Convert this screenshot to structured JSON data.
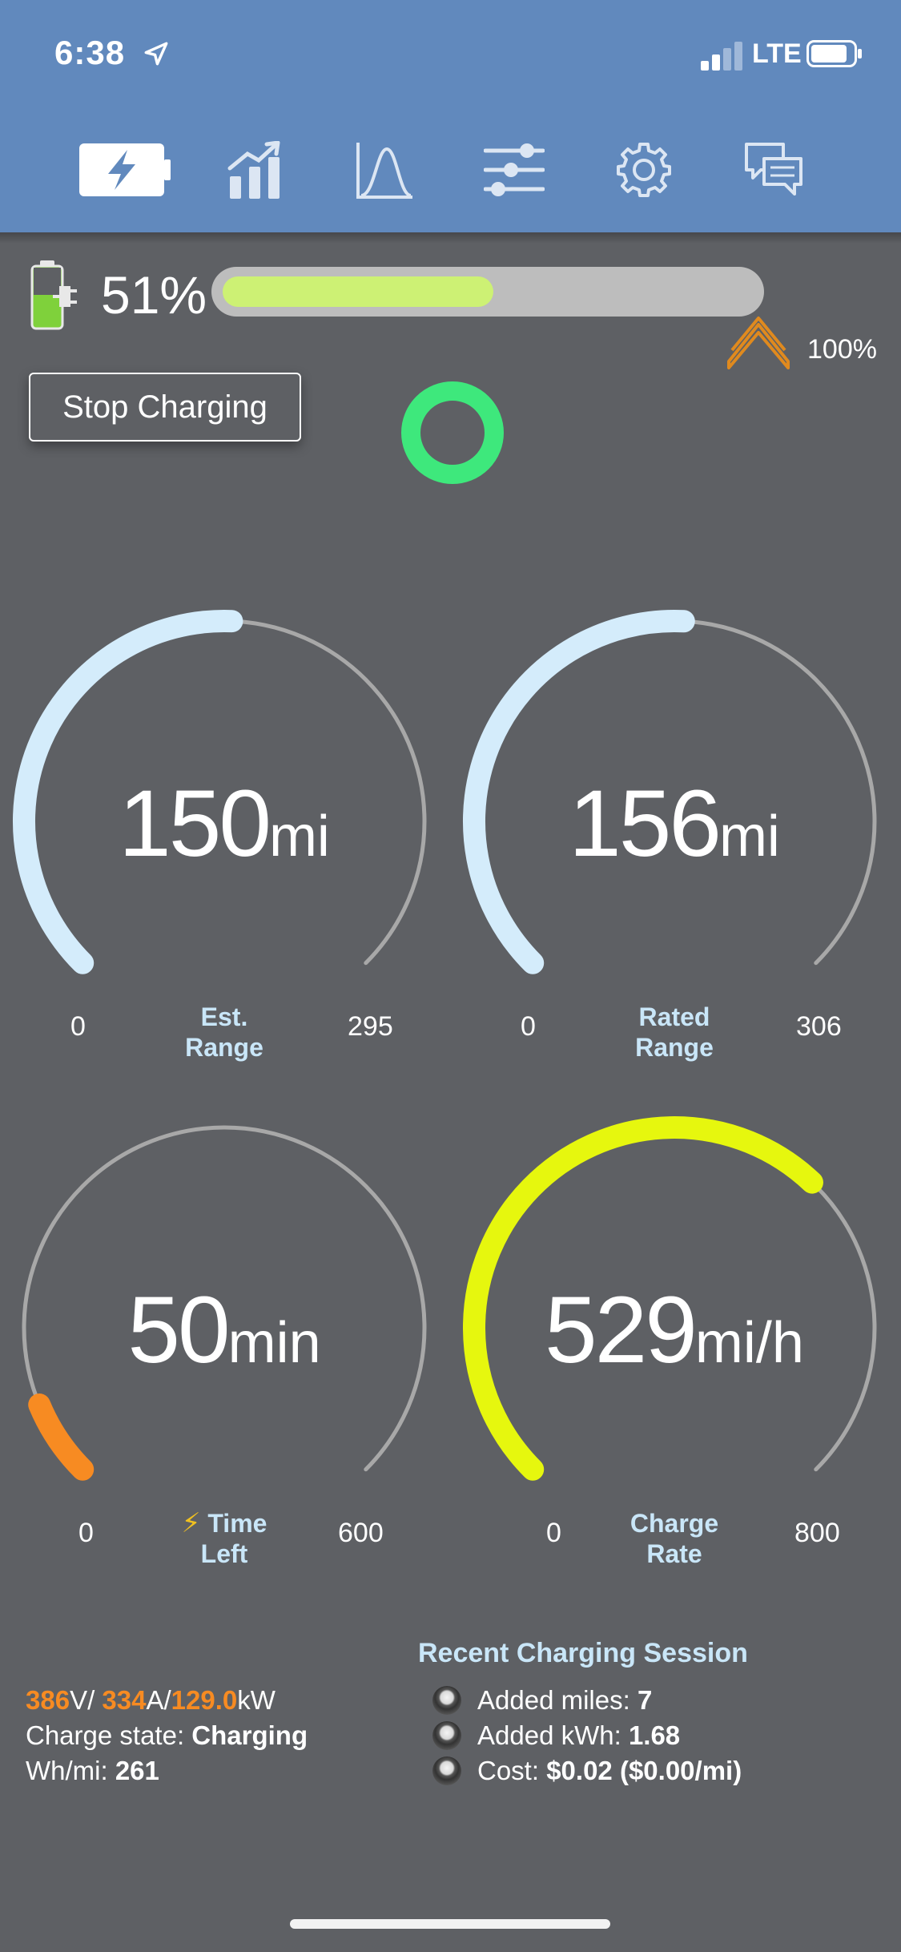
{
  "status_bar": {
    "time": "6:38",
    "network": "LTE"
  },
  "tabs": [
    {
      "icon": "battery-charging-icon",
      "active": true
    },
    {
      "icon": "bar-chart-icon",
      "active": false
    },
    {
      "icon": "curve-chart-icon",
      "active": false
    },
    {
      "icon": "sliders-icon",
      "active": false
    },
    {
      "icon": "gear-icon",
      "active": false
    },
    {
      "icon": "chat-bubbles-icon",
      "active": false
    }
  ],
  "battery": {
    "percent_label": "51%",
    "level": 0.51,
    "limit_label": "100%"
  },
  "stop_button": "Stop Charging",
  "gauges": {
    "est_range": {
      "value": "150",
      "unit": "mi",
      "min": "0",
      "max": "295",
      "label_line1": "Est.",
      "label_line2": "Range",
      "fraction": 0.508
    },
    "rated_range": {
      "value": "156",
      "unit": "mi",
      "min": "0",
      "max": "306",
      "label_line1": "Rated",
      "label_line2": "Range",
      "fraction": 0.51
    },
    "time_left": {
      "value": "50",
      "unit": "min",
      "min": "0",
      "max": "600",
      "label_line1": "Time",
      "label_line2": "Left",
      "fraction": 0.083
    },
    "charge_rate": {
      "value": "529",
      "unit": "mi/h",
      "min": "0",
      "max": "800",
      "label_line1": "Charge",
      "label_line2": "Rate",
      "fraction": 0.661
    }
  },
  "electrical": {
    "voltage": "386",
    "voltage_unit": "V/ ",
    "current": "334",
    "current_unit": "A/",
    "power": "129.0",
    "power_unit": "kW",
    "charge_state_label": "Charge state: ",
    "charge_state": "Charging",
    "wh_label": "Wh/mi: ",
    "wh_value": "261"
  },
  "recent_session": {
    "title": "Recent Charging Session",
    "items": [
      {
        "label": "Added miles: ",
        "value": "7"
      },
      {
        "label": "Added kWh: ",
        "value": "1.68"
      },
      {
        "label": "Cost: ",
        "value": "$0.02 ($0.00/mi)"
      }
    ]
  },
  "colors": {
    "header": "#6189bd",
    "background": "#5e6064",
    "range_arc": "#d4ecfb",
    "time_arc": "#f78b22",
    "rate_arc": "#e6f70e",
    "battery_fill": "#cdf174",
    "status_ring": "#3ee87c",
    "label_blue": "#c9e6f8"
  }
}
